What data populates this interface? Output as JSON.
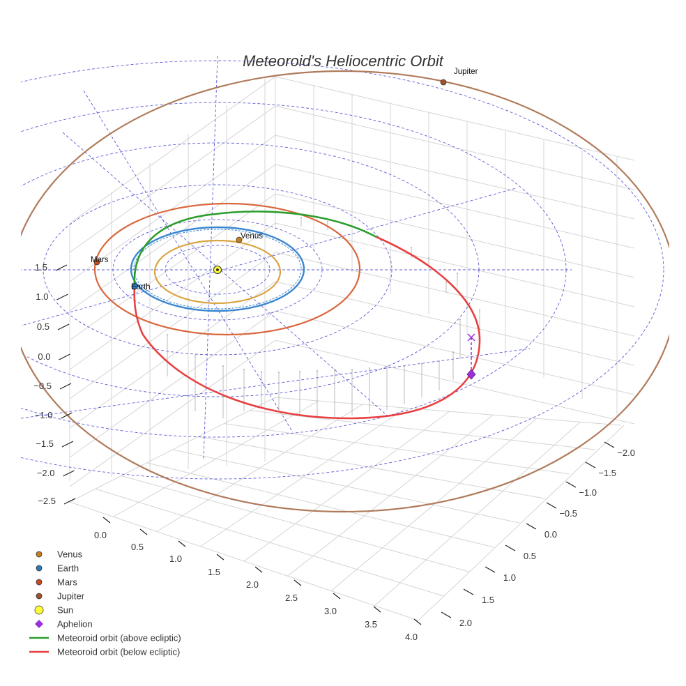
{
  "chart_data": {
    "type": "scatter3d",
    "title": "Meteoroid's Heliocentric Orbit",
    "colors": {
      "venus": "#d9a441",
      "earth": "#3a86cf",
      "mars": "#d9673c",
      "jupiter": "#b07a5a",
      "sun": "#ffff33",
      "aphelion": "#9b30d9",
      "above": "#2a9d2a",
      "below": "#e84040",
      "grid_circles": "#5c5cd6"
    },
    "axes": {
      "x": {
        "ticks": [
          "0.0",
          "0.5",
          "1.0",
          "1.5",
          "2.0",
          "2.5",
          "3.0",
          "3.5",
          "4.0"
        ]
      },
      "y": {
        "ticks": [
          "−2.0",
          "−1.5",
          "−1.0",
          "−0.5",
          "0.0",
          "0.5",
          "1.0",
          "1.5",
          "2.0"
        ]
      },
      "z": {
        "ticks": [
          "1.5",
          "1.0",
          "0.5",
          "0.0",
          "−0.5",
          "−1.0",
          "−1.5",
          "−2.0",
          "−2.5"
        ]
      }
    },
    "planets": [
      {
        "name": "Venus",
        "label": "Venus",
        "orbit_radius_au": 0.72
      },
      {
        "name": "Earth",
        "label": "Earth",
        "orbit_radius_au": 1.0
      },
      {
        "name": "Mars",
        "label": "Mars",
        "orbit_radius_au": 1.52
      },
      {
        "name": "Jupiter",
        "label": "Jupiter",
        "orbit_radius_au": 5.2
      }
    ],
    "series": [
      {
        "name": "Meteoroid orbit (above ecliptic)"
      },
      {
        "name": "Meteoroid orbit (below ecliptic)"
      }
    ],
    "legend": {
      "placement": "bottom-left",
      "items": [
        {
          "label": "Venus",
          "marker": "circle",
          "color": "#c87f1a"
        },
        {
          "label": "Earth",
          "marker": "circle",
          "color": "#2b7bba"
        },
        {
          "label": "Mars",
          "marker": "circle",
          "color": "#c84a1e"
        },
        {
          "label": "Jupiter",
          "marker": "circle",
          "color": "#a0522d"
        },
        {
          "label": "Sun",
          "marker": "circle",
          "color": "#ffff33"
        },
        {
          "label": "Aphelion",
          "marker": "diamond",
          "color": "#9b30d9"
        },
        {
          "label": "Meteoroid orbit (above ecliptic)",
          "marker": "line",
          "color": "#2a9d2a"
        },
        {
          "label": "Meteoroid orbit (below ecliptic)",
          "marker": "line",
          "color": "#e84040"
        }
      ]
    },
    "grid": true
  }
}
